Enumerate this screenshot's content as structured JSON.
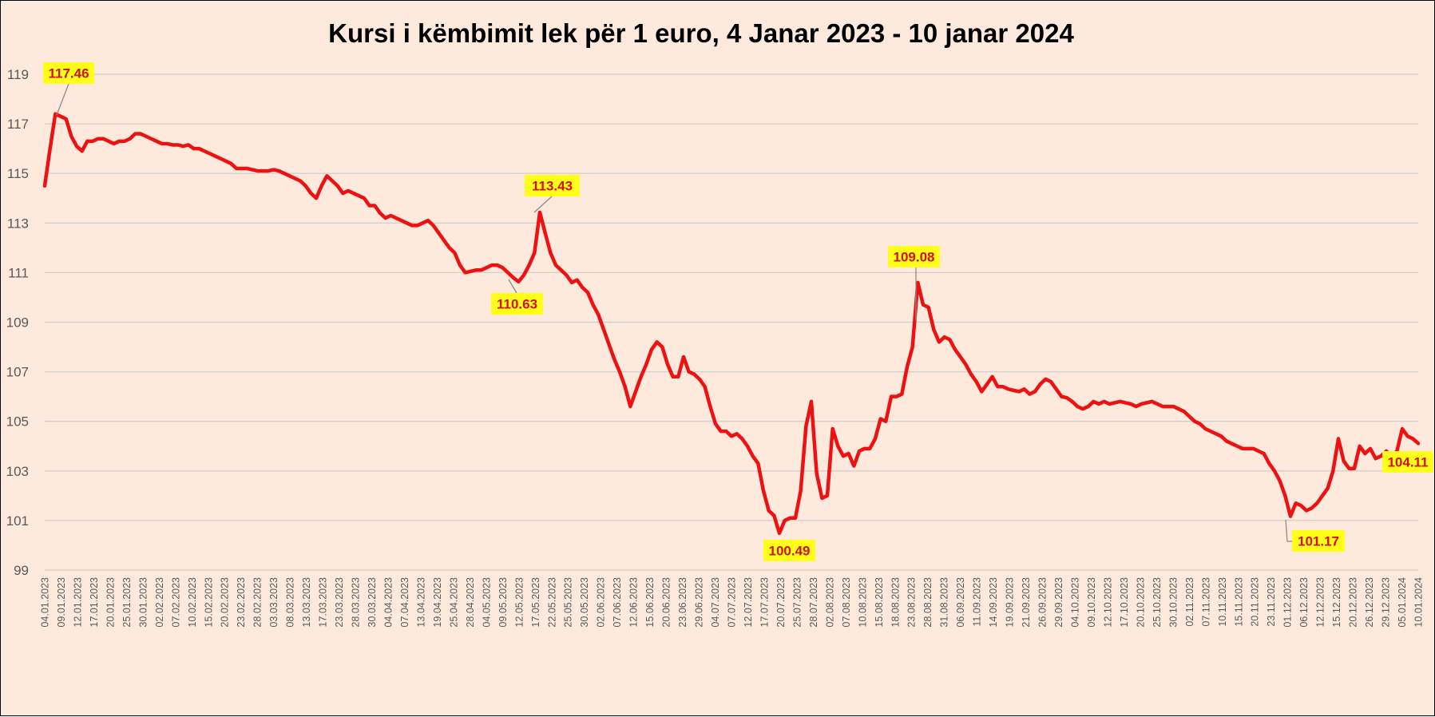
{
  "chart_data": {
    "type": "line",
    "title": "Kursi i këmbimit lek për 1 euro, 4 Janar 2023 - 10 janar 2024",
    "xlabel": "",
    "ylabel": "",
    "ylim": [
      99,
      119
    ],
    "yticks": [
      99,
      101,
      103,
      105,
      107,
      109,
      111,
      113,
      115,
      117,
      119
    ],
    "grid": true,
    "legend": "none",
    "colors": {
      "line": "#ee1111",
      "label_bg": "#ffff1a",
      "label_text": "#d40f0f",
      "background": "#fdeadd",
      "grid": "#d0d0d0"
    },
    "x_tick_labels": [
      "04.01.2023",
      "09.01.2023",
      "12.01.2023",
      "17.01.2023",
      "20.01.2023",
      "25.01.2023",
      "30.01.2023",
      "02.02.2023",
      "07.02.2023",
      "10.02.2023",
      "15.02.2023",
      "20.02.2023",
      "23.02.2023",
      "28.02.2023",
      "03.03.2023",
      "08.03.2023",
      "13.03.2023",
      "17.03.2023",
      "23.03.2023",
      "28.03.2023",
      "30.03.2023",
      "04.04.2023",
      "07.04.2023",
      "13.04.2023",
      "19.04.2023",
      "25.04.2023",
      "28.04.2023",
      "04.05.2023",
      "09.05.2023",
      "12.05.2023",
      "17.05.2023",
      "22.05.2023",
      "25.05.2023",
      "30.05.2023",
      "02.06.2023",
      "07.06.2023",
      "12.06.2023",
      "15.06.2023",
      "20.06.2023",
      "23.06.2023",
      "29.06.2023",
      "04.07.2023",
      "07.07.2023",
      "12.07.2023",
      "17.07.2023",
      "20.07.2023",
      "25.07.2023",
      "28.07.2023",
      "02.08.2023",
      "07.08.2023",
      "10.08.2023",
      "15.08.2023",
      "18.08.2023",
      "23.08.2023",
      "28.08.2023",
      "31.08.2023",
      "06.09.2023",
      "11.09.2023",
      "14.09.2023",
      "19.09.2023",
      "21.09.2023",
      "26.09.2023",
      "29.09.2023",
      "04.10.2023",
      "09.10.2023",
      "12.10.2023",
      "17.10.2023",
      "20.10.2023",
      "25.10.2023",
      "30.10.2023",
      "02.11.2023",
      "07.11.2023",
      "10.11.2023",
      "15.11.2023",
      "20.11.2023",
      "23.11.2023",
      "01.12.2023",
      "06.12.2023",
      "12.12.2023",
      "15.12.2023",
      "20.12.2023",
      "26.12.2023",
      "29.12.2023",
      "05.01.2024",
      "10.01.2024"
    ],
    "series": [
      {
        "values": [
          114.5,
          116.0,
          117.4,
          117.3,
          117.2,
          116.5,
          116.1,
          115.9,
          116.3,
          116.3,
          116.4,
          116.4,
          116.3,
          116.2,
          116.3,
          116.3,
          116.4,
          116.6,
          116.6,
          116.5,
          116.4,
          116.3,
          116.2,
          116.2,
          116.15,
          116.15,
          116.1,
          116.15,
          116.0,
          116.0,
          115.9,
          115.8,
          115.7,
          115.6,
          115.5,
          115.4,
          115.2,
          115.2,
          115.2,
          115.15,
          115.1,
          115.1,
          115.1,
          115.15,
          115.1,
          115.0,
          114.9,
          114.8,
          114.7,
          114.5,
          114.2,
          114.0,
          114.5,
          114.9,
          114.7,
          114.5,
          114.2,
          114.3,
          114.2,
          114.1,
          114.0,
          113.7,
          113.7,
          113.4,
          113.2,
          113.3,
          113.2,
          113.1,
          113.0,
          112.9,
          112.9,
          113.0,
          113.1,
          112.9,
          112.6,
          112.3,
          112.0,
          111.8,
          111.3,
          111.0,
          111.05,
          111.1,
          111.1,
          111.2,
          111.3,
          111.3,
          111.2,
          111.0,
          110.8,
          110.63,
          110.9,
          111.3,
          111.8,
          113.43,
          112.6,
          111.8,
          111.3,
          111.1,
          110.9,
          110.6,
          110.7,
          110.4,
          110.2,
          109.7,
          109.3,
          108.7,
          108.1,
          107.5,
          107.0,
          106.4,
          105.6,
          106.2,
          106.8,
          107.3,
          107.9,
          108.2,
          108.0,
          107.3,
          106.8,
          106.8,
          107.6,
          107.0,
          106.9,
          106.7,
          106.4,
          105.6,
          104.9,
          104.6,
          104.6,
          104.4,
          104.5,
          104.3,
          104.0,
          103.6,
          103.3,
          102.2,
          101.4,
          101.2,
          100.49,
          101.0,
          101.1,
          101.1,
          102.2,
          104.8,
          105.8,
          102.9,
          101.9,
          102.0,
          104.7,
          104.0,
          103.6,
          103.7,
          103.2,
          103.8,
          103.9,
          103.9,
          104.3,
          105.1,
          105.0,
          106.0,
          106.0,
          106.1,
          107.2,
          108.0,
          110.6,
          109.7,
          109.6,
          108.7,
          108.2,
          108.4,
          108.3,
          107.9,
          107.6,
          107.3,
          106.9,
          106.6,
          106.2,
          106.5,
          106.8,
          106.4,
          106.4,
          106.3,
          106.25,
          106.2,
          106.3,
          106.1,
          106.2,
          106.5,
          106.7,
          106.6,
          106.3,
          106.0,
          105.95,
          105.8,
          105.6,
          105.5,
          105.6,
          105.8,
          105.7,
          105.8,
          105.7,
          105.75,
          105.8,
          105.75,
          105.7,
          105.6,
          105.7,
          105.75,
          105.8,
          105.7,
          105.6,
          105.6,
          105.6,
          105.5,
          105.4,
          105.2,
          105.0,
          104.9,
          104.7,
          104.6,
          104.5,
          104.4,
          104.2,
          104.1,
          104.0,
          103.9,
          103.9,
          103.9,
          103.8,
          103.7,
          103.3,
          103.0,
          102.6,
          102.0,
          101.17,
          101.7,
          101.6,
          101.4,
          101.5,
          101.7,
          102.0,
          102.3,
          103.0,
          104.3,
          103.4,
          103.1,
          103.1,
          104.0,
          103.7,
          103.9,
          103.5,
          103.6,
          103.8,
          103.6,
          103.8,
          104.7,
          104.4,
          104.3,
          104.11
        ]
      }
    ],
    "annotations": [
      {
        "label": "117.46"
      },
      {
        "label": "113.43"
      },
      {
        "label": "110.63"
      },
      {
        "label": "109.08"
      },
      {
        "label": "100.49"
      },
      {
        "label": "101.17"
      },
      {
        "label": "104.11"
      }
    ]
  }
}
